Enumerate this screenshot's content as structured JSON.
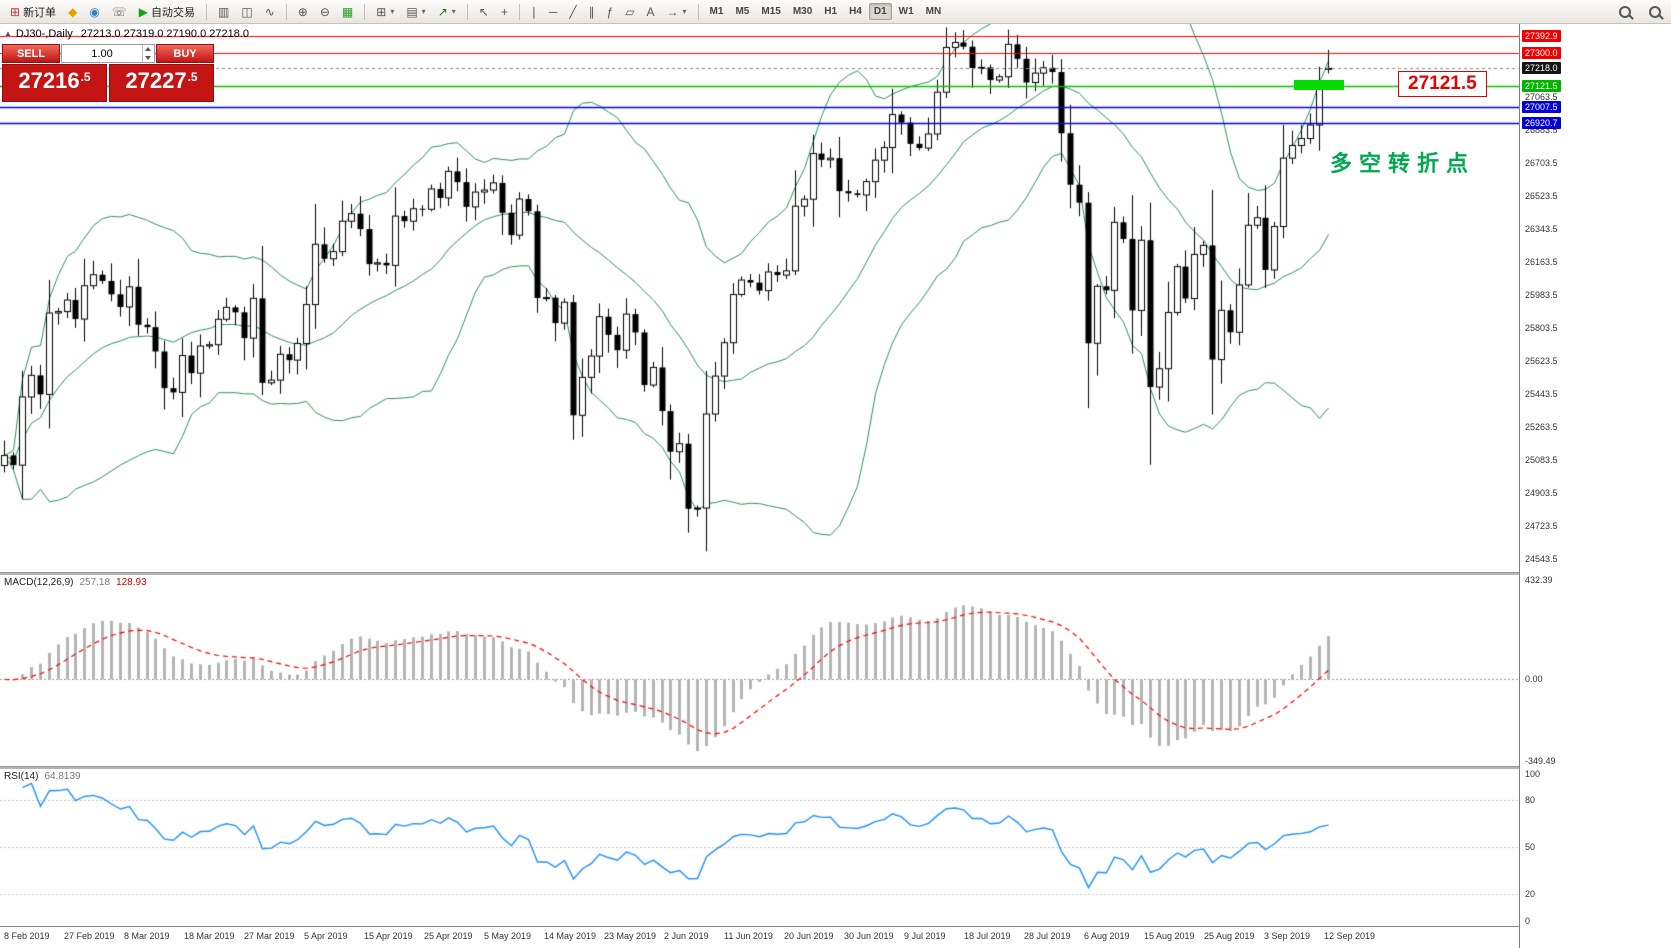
{
  "toolbar": {
    "timeframes": [
      "M1",
      "M5",
      "M15",
      "M30",
      "H1",
      "H4",
      "D1",
      "W1",
      "MN"
    ],
    "active_timeframe": "D1",
    "groups": [
      {
        "id": "trade",
        "items": [
          {
            "id": "new-order-button",
            "glyph": "⊞",
            "color": "#cc3333",
            "label": "新订单"
          },
          {
            "id": "market-button",
            "glyph": "◆",
            "color": "#e8a000"
          },
          {
            "id": "community-button",
            "glyph": "◉",
            "color": "#2e86c1"
          },
          {
            "id": "phone-trading-button",
            "glyph": "☏",
            "color": "#666666"
          },
          {
            "id": "autotrade-button",
            "glyph": "▶",
            "color": "#1ca01c",
            "label": "自动交易"
          }
        ]
      },
      {
        "id": "chart-type",
        "items": [
          {
            "id": "bar-chart-button",
            "glyph": "▥"
          },
          {
            "id": "candlestick-chart-button",
            "glyph": "◫"
          },
          {
            "id": "line-chart-button",
            "glyph": "∿"
          }
        ]
      },
      {
        "id": "zoom",
        "items": [
          {
            "id": "zoom-in-button",
            "glyph": "⊕"
          },
          {
            "id": "zoom-out-button",
            "glyph": "⊖"
          },
          {
            "id": "tile-windows-button",
            "glyph": "▦",
            "color": "#1ca01c"
          }
        ]
      },
      {
        "id": "windows",
        "items": [
          {
            "id": "new-chart-button",
            "glyph": "⊞",
            "dropdown": true
          },
          {
            "id": "profiles-button",
            "glyph": "▤",
            "dropdown": true
          },
          {
            "id": "indicators-button",
            "glyph": "↗",
            "color": "#0a7a2a",
            "dropdown": true
          }
        ]
      },
      {
        "id": "cursor",
        "items": [
          {
            "id": "cursor-button",
            "glyph": "↖"
          },
          {
            "id": "crosshair-button",
            "glyph": "+"
          }
        ]
      },
      {
        "id": "objects",
        "items": [
          {
            "id": "vertical-line-button",
            "glyph": "∣"
          },
          {
            "id": "horizontal-line-button",
            "glyph": "─"
          },
          {
            "id": "trendline-button",
            "glyph": "╱"
          },
          {
            "id": "channel-button",
            "glyph": "∥"
          },
          {
            "id": "fibonacci-button",
            "glyph": "ƒ"
          },
          {
            "id": "shapes-button",
            "glyph": "▱"
          },
          {
            "id": "text-button",
            "glyph": "A"
          },
          {
            "id": "arrows-button",
            "glyph": "→",
            "dropdown": true
          }
        ]
      }
    ]
  },
  "chart": {
    "panel_toggle_glyph": "▲",
    "title": "DJ30-,Daily",
    "ohlc_text": "27213.0 27319.0 27190.0 27218.0"
  },
  "trade_panel": {
    "sell_label": "SELL",
    "buy_label": "BUY",
    "volume": "1.00",
    "sell_price_main": "27216",
    "sell_price_sup": ".5",
    "buy_price_main": "27227",
    "buy_price_sup": ".5"
  },
  "annotations": {
    "turning_point_text": "多空转折点",
    "level_label": "27121.5",
    "level_price": 27121.5
  },
  "price_axis": {
    "grid_labels": [
      27063.5,
      26883.5,
      26703.5,
      26523.5,
      26343.5,
      26163.5,
      25983.5,
      25803.5,
      25623.5,
      25443.5,
      25263.5,
      25083.5,
      24903.5,
      24723.5,
      24543.5
    ],
    "badges": [
      {
        "text": "27392.9",
        "price": 27392.9,
        "type": "red"
      },
      {
        "text": "27300.0",
        "price": 27300.0,
        "type": "red"
      },
      {
        "text": "27218.0",
        "price": 27218.0,
        "type": "black"
      },
      {
        "text": "27121.5",
        "price": 27121.5,
        "type": "green"
      },
      {
        "text": "27007.5",
        "price": 27007.5,
        "type": "blue"
      },
      {
        "text": "26920.7",
        "price": 26920.7,
        "type": "blue"
      }
    ]
  },
  "macd": {
    "label": "MACD(12,26,9)",
    "main_value": "257.18",
    "signal_value": "128.93",
    "axis": [
      {
        "text": "432.39",
        "value": 432.39
      },
      {
        "text": "0.00",
        "value": 0
      },
      {
        "text": "-349.49",
        "value": -349.49
      }
    ]
  },
  "rsi": {
    "label": "RSI(14)",
    "value": "64.8139",
    "axis": [
      {
        "text": "100",
        "value": 100
      },
      {
        "text": "80",
        "value": 80
      },
      {
        "text": "50",
        "value": 50
      },
      {
        "text": "20",
        "value": 20
      },
      {
        "text": "0",
        "value": 0
      }
    ]
  },
  "time_axis": {
    "labels": [
      "8 Feb 2019",
      "27 Feb 2019",
      "8 Mar 2019",
      "18 Mar 2019",
      "27 Mar 2019",
      "5 Apr 2019",
      "15 Apr 2019",
      "25 Apr 2019",
      "5 May 2019",
      "14 May 2019",
      "23 May 2019",
      "2 Jun 2019",
      "11 Jun 2019",
      "20 Jun 2019",
      "30 Jun 2019",
      "9 Jul 2019",
      "18 Jul 2019",
      "28 Jul 2019",
      "6 Aug 2019",
      "15 Aug 2019",
      "25 Aug 2019",
      "3 Sep 2019",
      "12 Sep 2019"
    ]
  },
  "chart_data": {
    "type": "candlestick",
    "symbol": "DJ30-",
    "timeframe": "Daily",
    "last_ohlc": {
      "open": 27213.0,
      "high": 27319.0,
      "low": 27190.0,
      "close": 27218.0
    },
    "price_range": [
      24470,
      27460
    ],
    "closes": [
      25106,
      25053,
      25425,
      25543,
      25439,
      25883,
      25891,
      25954,
      25850,
      26032,
      26092,
      26058,
      25985,
      25916,
      26026,
      25819,
      25806,
      25673,
      25473,
      25450,
      25651,
      25555,
      25703,
      25710,
      25849,
      25914,
      25887,
      25746,
      25963,
      25502,
      25517,
      25658,
      25626,
      25717,
      25929,
      26258,
      26179,
      26218,
      26384,
      26425,
      26341,
      26150,
      26157,
      26143,
      26412,
      26384,
      26452,
      26449,
      26560,
      26511,
      26656,
      26597,
      26462,
      26543,
      26554,
      26593,
      26430,
      26308,
      26505,
      26438,
      25965,
      25967,
      25828,
      25942,
      25325,
      25532,
      25648,
      25863,
      25764,
      25680,
      25877,
      25777,
      25490,
      25586,
      25348,
      25126,
      25170,
      24815,
      24819,
      25332,
      25539,
      25721,
      25984,
      26063,
      26049,
      26005,
      26107,
      26090,
      26113,
      26466,
      26504,
      26753,
      26719,
      26728,
      26548,
      26536,
      26527,
      26600,
      26717,
      26786,
      26966,
      26922,
      26806,
      26783,
      26860,
      27088,
      27332,
      27359,
      27336,
      27220,
      27223,
      27154,
      27172,
      27349,
      27270,
      27141,
      27192,
      27221,
      27198,
      26864,
      26583,
      26485,
      25718,
      26029,
      26007,
      26378,
      26287,
      25897,
      26280,
      25479,
      25579,
      25886,
      26136,
      25962,
      26203,
      26252,
      25629,
      25898,
      25778,
      26036,
      26362,
      26403,
      26118,
      26355,
      26728,
      26797,
      26835,
      26909,
      27137,
      27218
    ],
    "overlays": {
      "bollinger": {
        "period": 20,
        "deviation": 2
      }
    },
    "horizontal_lines": [
      {
        "price": 27392.9,
        "color": "#ff0000",
        "width": 1.2
      },
      {
        "price": 27300.0,
        "color": "#ff0000",
        "width": 1.2
      },
      {
        "price": 27121.5,
        "color": "#00c000",
        "width": 1.4
      },
      {
        "price": 27007.5,
        "color": "#0000dd",
        "width": 1.4
      },
      {
        "price": 26920.7,
        "color": "#0000dd",
        "width": 1.4
      }
    ],
    "macd": {
      "fast": 12,
      "slow": 26,
      "signal": 9,
      "current_main": 257.18,
      "current_signal": 128.93,
      "scale": [
        -365,
        445
      ]
    },
    "rsi": {
      "period": 14,
      "current": 64.8139,
      "levels": [
        80,
        50,
        20
      ],
      "scale": [
        0,
        100
      ]
    },
    "colors": {
      "bollinger": "#2a9055",
      "bull": "#ffffff",
      "bear": "#000000",
      "wick": "#000000",
      "macd_hist": "#b4b4b4",
      "macd_signal": "#ff0000",
      "rsi_line": "#1e90ff"
    }
  }
}
